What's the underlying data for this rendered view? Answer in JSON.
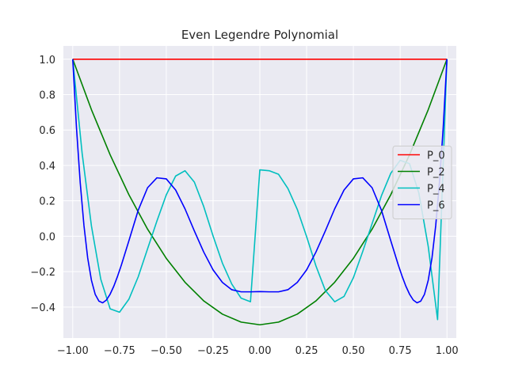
{
  "chart_data": {
    "type": "line",
    "title": "Even Legendre Polynomial",
    "xlabel": "",
    "ylabel": "",
    "xlim": [
      -1.05,
      1.05
    ],
    "ylim": [
      -0.575,
      1.075
    ],
    "x_ticks": [
      -1.0,
      -0.75,
      -0.5,
      -0.25,
      0.0,
      0.25,
      0.5,
      0.75,
      1.0
    ],
    "x_tick_labels": [
      "−1.00",
      "−0.75",
      "−0.50",
      "−0.25",
      "0.00",
      "0.25",
      "0.50",
      "0.75",
      "1.00"
    ],
    "y_ticks": [
      -0.4,
      -0.2,
      0.0,
      0.2,
      0.4,
      0.6,
      0.8,
      1.0
    ],
    "y_tick_labels": [
      "−0.4",
      "−0.2",
      "0.0",
      "0.2",
      "0.4",
      "0.6",
      "0.8",
      "1.0"
    ],
    "grid": true,
    "legend_position": "center-right",
    "background_color": "#eaeaf2",
    "grid_color": "#ffffff",
    "series": [
      {
        "name": "P_0",
        "color": "#ff0000",
        "x": [
          -1.0,
          -0.75,
          -0.5,
          -0.25,
          0.0,
          0.25,
          0.5,
          0.75,
          1.0
        ],
        "y": [
          1.0,
          1.0,
          1.0,
          1.0,
          1.0,
          1.0,
          1.0,
          1.0,
          1.0
        ]
      },
      {
        "name": "P_2",
        "color": "#008000",
        "x": [
          -1.0,
          -0.9,
          -0.8,
          -0.7,
          -0.6,
          -0.5,
          -0.4,
          -0.3,
          -0.2,
          -0.1,
          0.0,
          0.1,
          0.2,
          0.3,
          0.4,
          0.5,
          0.6,
          0.7,
          0.8,
          0.9,
          1.0
        ],
        "y": [
          1.0,
          0.715,
          0.46,
          0.235,
          0.04,
          -0.125,
          -0.26,
          -0.365,
          -0.44,
          -0.485,
          -0.5,
          -0.485,
          -0.44,
          -0.365,
          -0.26,
          -0.125,
          0.04,
          0.235,
          0.46,
          0.715,
          1.0
        ]
      },
      {
        "name": "P_4",
        "color": "#00bfbf",
        "x": [
          -1.0,
          -0.95,
          -0.9,
          -0.85,
          -0.8,
          -0.75,
          -0.7,
          -0.65,
          -0.6,
          -0.55,
          -0.5,
          -0.45,
          -0.4,
          -0.35,
          -0.3,
          -0.25,
          -0.2,
          -0.15,
          -0.1,
          -0.05,
          0.0,
          0.05,
          0.1,
          0.15,
          0.2,
          0.25,
          0.3,
          0.35,
          0.4,
          0.45,
          0.5,
          0.55,
          0.6,
          0.65,
          0.7,
          0.75,
          0.8,
          0.85,
          0.9,
          0.95,
          1.0
        ],
        "y": [
          1.0,
          0.4709,
          0.0579,
          -0.2436,
          -0.41,
          -0.429,
          -0.356,
          -0.229,
          -0.071,
          0.086,
          0.2339,
          0.34,
          0.37,
          0.306,
          0.168,
          0.002,
          -0.152,
          -0.27,
          -0.35,
          -0.37,
          0.375,
          0.37,
          0.35,
          0.27,
          0.152,
          -0.002,
          -0.168,
          -0.306,
          -0.37,
          -0.34,
          -0.2339,
          -0.086,
          0.071,
          0.229,
          0.356,
          0.429,
          0.41,
          0.2436,
          -0.0579,
          -0.4709,
          1.0
        ]
      },
      {
        "name": "P_6",
        "color": "#0000ff",
        "x": [
          -1.0,
          -0.98,
          -0.96,
          -0.94,
          -0.92,
          -0.9,
          -0.88,
          -0.86,
          -0.84,
          -0.82,
          -0.8,
          -0.78,
          -0.76,
          -0.74,
          -0.72,
          -0.7,
          -0.65,
          -0.6,
          -0.55,
          -0.5,
          -0.45,
          -0.4,
          -0.35,
          -0.3,
          -0.25,
          -0.2,
          -0.15,
          -0.1,
          -0.05,
          0.0,
          0.05,
          0.1,
          0.15,
          0.2,
          0.25,
          0.3,
          0.35,
          0.4,
          0.45,
          0.5,
          0.55,
          0.6,
          0.65,
          0.7,
          0.72,
          0.74,
          0.76,
          0.78,
          0.8,
          0.82,
          0.84,
          0.86,
          0.88,
          0.9,
          0.92,
          0.94,
          0.96,
          0.98,
          1.0
        ],
        "y": [
          1.0,
          0.6135,
          0.3029,
          0.0601,
          -0.1227,
          -0.2488,
          -0.3278,
          -0.3666,
          -0.3759,
          -0.3604,
          -0.3269,
          -0.281,
          -0.2248,
          -0.1625,
          -0.0945,
          -0.026,
          0.147,
          0.274,
          0.33,
          0.324,
          0.261,
          0.155,
          0.03,
          -0.089,
          -0.19,
          -0.261,
          -0.302,
          -0.314,
          -0.314,
          -0.3125,
          -0.314,
          -0.314,
          -0.302,
          -0.261,
          -0.19,
          -0.089,
          0.03,
          0.155,
          0.261,
          0.324,
          0.33,
          0.274,
          0.147,
          -0.026,
          -0.0945,
          -0.1625,
          -0.2248,
          -0.281,
          -0.3269,
          -0.3604,
          -0.3759,
          -0.3666,
          -0.3278,
          -0.2488,
          -0.1227,
          0.0601,
          0.3029,
          0.6135,
          1.0
        ]
      }
    ]
  }
}
